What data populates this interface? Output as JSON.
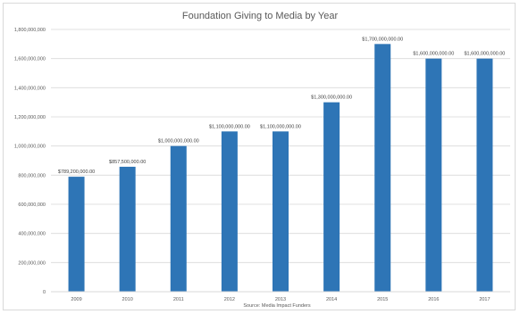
{
  "chart_data": {
    "type": "bar",
    "title": "Foundation Giving to Media by Year",
    "source": "Source: Media Impact Funders",
    "categories": [
      "2009",
      "2010",
      "2011",
      "2012",
      "2013",
      "2014",
      "2015",
      "2016",
      "2017"
    ],
    "values": [
      789200000,
      857500000,
      1000000000,
      1100000000,
      1100000000,
      1300000000,
      1700000000,
      1600000000,
      1600000000
    ],
    "data_labels": [
      "$789,200,000.00",
      "$857,500,000.00",
      "$1,000,000,000.00",
      "$1,100,000,000.00",
      "$1,100,000,000.00",
      "$1,300,000,000.00",
      "$1,700,000,000.00",
      "$1,600,000,000.00",
      "$1,600,000,000.00"
    ],
    "y_ticks": [
      0,
      200000000,
      400000000,
      600000000,
      800000000,
      1000000000,
      1200000000,
      1400000000,
      1600000000,
      1800000000
    ],
    "y_tick_labels": [
      "0",
      "200,000,000",
      "400,000,000",
      "600,000,000",
      "800,000,000",
      "1,000,000,000",
      "1,200,000,000",
      "1,400,000,000",
      "1,600,000,000",
      "1,800,000,000"
    ],
    "ylim": [
      0,
      1800000000
    ],
    "grid": true,
    "legend": "none",
    "bar_color": "#2e75b6",
    "grid_color": "#d9d9d9"
  }
}
